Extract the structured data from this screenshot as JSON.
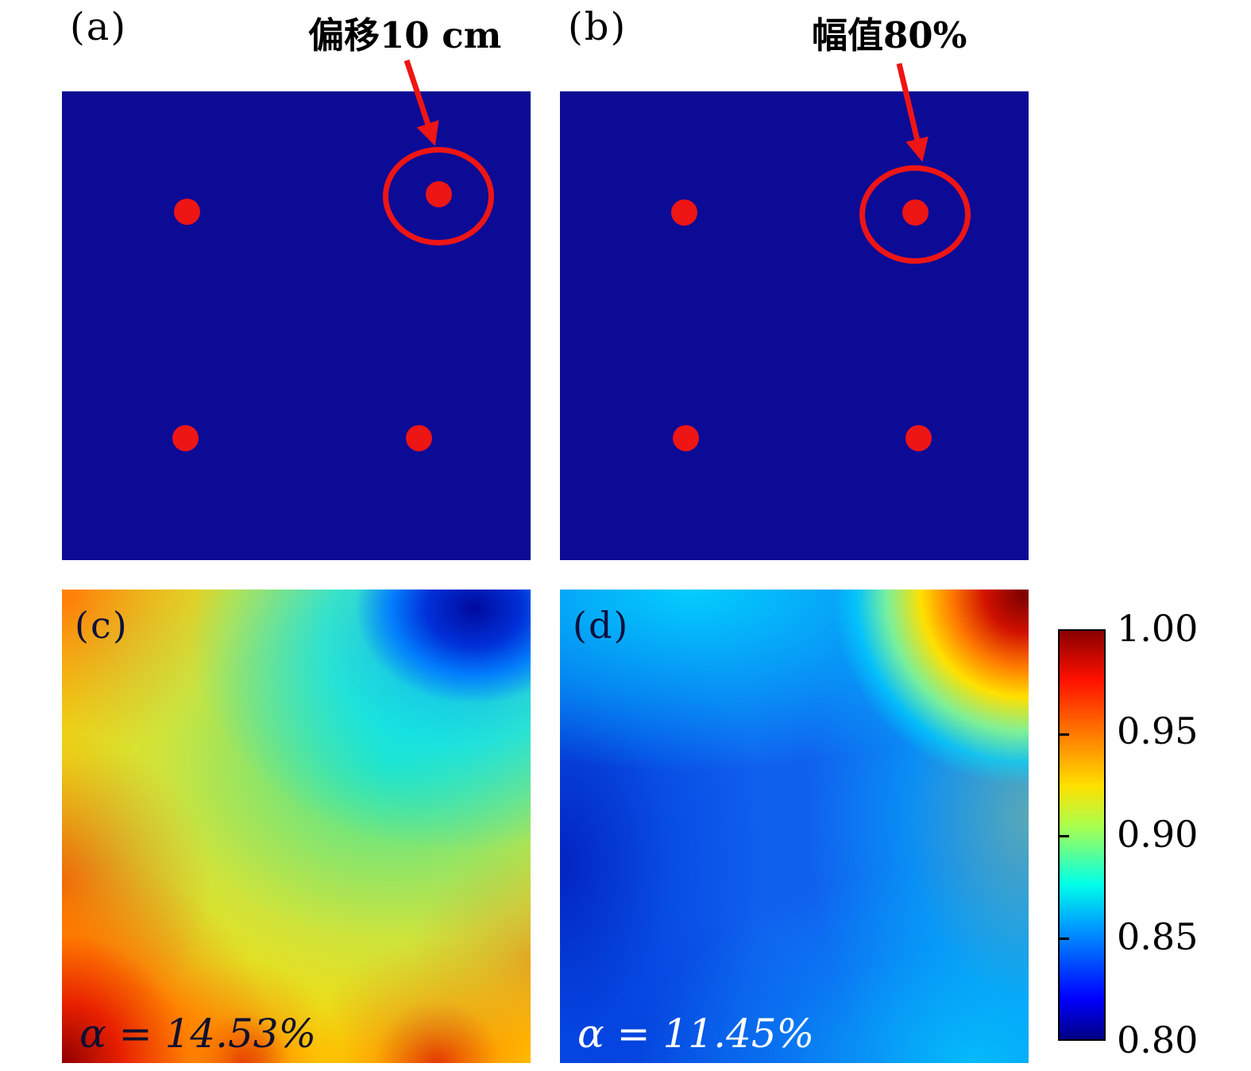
{
  "figure": {
    "panel_a": {
      "label": "(a)",
      "annotation": "偏移10 cm",
      "dots": [
        [
          0.266,
          0.256
        ],
        [
          0.803,
          0.219
        ],
        [
          0.263,
          0.739
        ],
        [
          0.761,
          0.739
        ]
      ],
      "circled_dot_index": 1,
      "dot_color": "#ee1515",
      "background_color": "#0b0b96"
    },
    "panel_b": {
      "label": "(b)",
      "annotation": "幅值80%",
      "dots": [
        [
          0.264,
          0.258
        ],
        [
          0.758,
          0.258
        ],
        [
          0.268,
          0.739
        ],
        [
          0.764,
          0.739
        ]
      ],
      "circled_dot_index": 1,
      "dot_color": "#ee1515",
      "background_color": "#0b0b96"
    },
    "panel_c": {
      "label": "(c)",
      "alpha_text": "α = 14.53%"
    },
    "panel_d": {
      "label": "(d)",
      "alpha_text": "α = 11.45%"
    },
    "colorbar": {
      "ticks": [
        "1.00",
        "0.95",
        "0.90",
        "0.85",
        "0.80"
      ],
      "min": 0.8,
      "max": 1.0,
      "colormap": "jet"
    }
  },
  "chart_data": [
    {
      "type": "scatter",
      "panel": "(a)",
      "annotation": "偏移10 cm",
      "coords_note": "fraction of panel, origin top-left",
      "points": [
        [
          0.266,
          0.256
        ],
        [
          0.803,
          0.219
        ],
        [
          0.263,
          0.739
        ],
        [
          0.761,
          0.739
        ]
      ],
      "highlighted_point_index": 1,
      "marker_color": "#ee1515",
      "background": "#0b0b96"
    },
    {
      "type": "scatter",
      "panel": "(b)",
      "annotation": "幅值80%",
      "coords_note": "fraction of panel, origin top-left",
      "points": [
        [
          0.264,
          0.258
        ],
        [
          0.758,
          0.258
        ],
        [
          0.268,
          0.739
        ],
        [
          0.764,
          0.739
        ]
      ],
      "highlighted_point_index": 1,
      "marker_color": "#ee1515",
      "background": "#0b0b96"
    },
    {
      "type": "heatmap",
      "panel": "(c)",
      "label": "α = 14.53%",
      "value_range": [
        0.8,
        1.0
      ],
      "colormap": "jet",
      "approx_grid_3x3_top_to_bottom": [
        [
          0.93,
          0.91,
          0.81
        ],
        [
          0.93,
          0.9,
          0.88
        ],
        [
          0.98,
          0.92,
          0.94
        ]
      ]
    },
    {
      "type": "heatmap",
      "panel": "(d)",
      "label": "α = 11.45%",
      "value_range": [
        0.8,
        1.0
      ],
      "colormap": "jet",
      "approx_grid_3x3_top_to_bottom": [
        [
          0.86,
          0.87,
          0.99
        ],
        [
          0.83,
          0.84,
          0.89
        ],
        [
          0.84,
          0.84,
          0.86
        ]
      ]
    }
  ]
}
